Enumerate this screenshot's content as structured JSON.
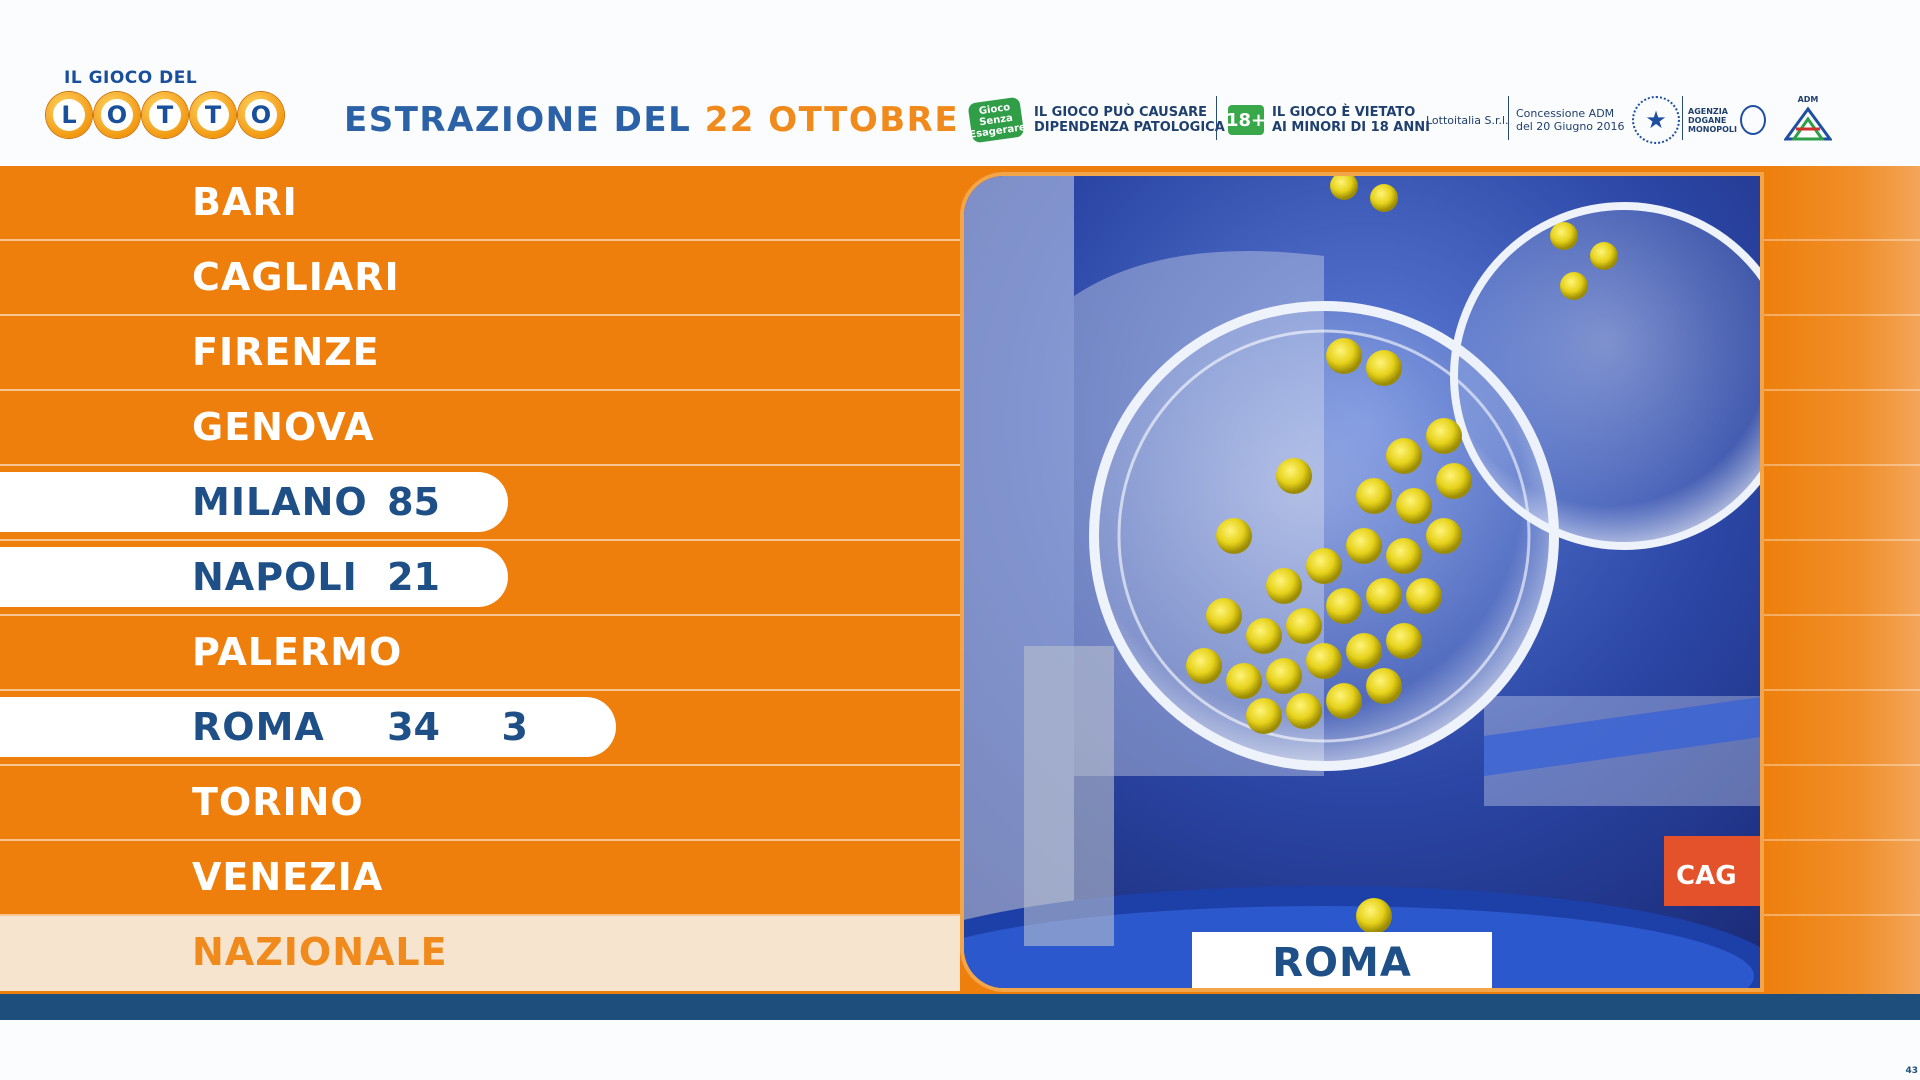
{
  "header": {
    "logo_small": "IL GIOCO DEL",
    "logo_letters": [
      "L",
      "O",
      "T",
      "T",
      "O"
    ],
    "title_prefix": "ESTRAZIONE DEL",
    "title_date": "22 OTTOBRE"
  },
  "disclaimers": {
    "senza_icon": "Gioco Senza Esagerare",
    "gioco_causare": "IL GIOCO PUÒ CAUSARE\nDIPENDENZA PATOLOGICA",
    "age_badge": "18+",
    "gioco_vietato": "IL GIOCO È VIETATO\nAI MINORI DI 18 ANNI",
    "operator": "Lottoitalia S.r.l.",
    "concessione": "Concessione ADM\ndel 20 Giugno 2016",
    "agency": "AGENZIA\nDOGANE\nMONOPOLI",
    "adm": "ADM"
  },
  "wheels": [
    {
      "name": "BARI",
      "numbers": []
    },
    {
      "name": "CAGLIARI",
      "numbers": []
    },
    {
      "name": "FIRENZE",
      "numbers": []
    },
    {
      "name": "GENOVA",
      "numbers": []
    },
    {
      "name": "MILANO",
      "numbers": [
        "85"
      ]
    },
    {
      "name": "NAPOLI",
      "numbers": [
        "21"
      ]
    },
    {
      "name": "PALERMO",
      "numbers": []
    },
    {
      "name": "ROMA",
      "numbers": [
        "34",
        "3"
      ]
    },
    {
      "name": "TORINO",
      "numbers": []
    },
    {
      "name": "VENEZIA",
      "numbers": []
    },
    {
      "name": "NAZIONALE",
      "numbers": []
    }
  ],
  "video": {
    "current_city": "ROMA",
    "machine_label": "CAG"
  },
  "footer": {
    "page_number": "43"
  },
  "colors": {
    "orange": "#ee7f0c",
    "navy": "#1e4f86",
    "blue_bar": "#1e4f7c"
  }
}
